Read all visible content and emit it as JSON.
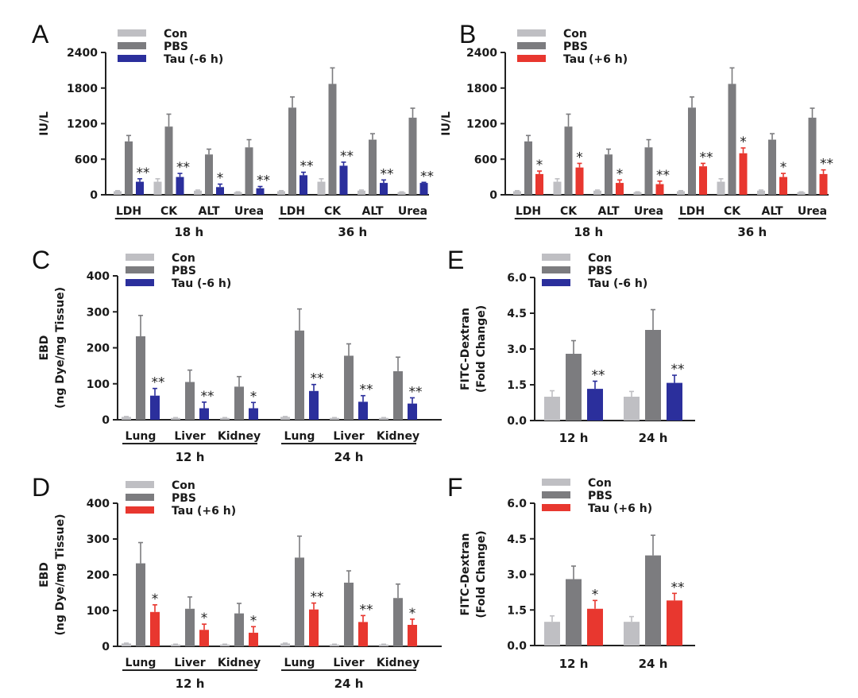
{
  "colors": {
    "con": "#bfbfc3",
    "pbs": "#7c7c7f",
    "tau_pre": "#2b2f9c",
    "tau_post": "#e8372f"
  },
  "chart_data": [
    {
      "panel": "A",
      "type": "bar",
      "title": "",
      "xlabel": "",
      "ylabel": "IU/L",
      "ylim": [
        0,
        2400
      ],
      "yticks": [
        "0",
        "600",
        "1200",
        "1800",
        "2400"
      ],
      "ytick_values": [
        0,
        600,
        1200,
        1800,
        2400
      ],
      "legend": [
        "Con",
        "PBS",
        "Tau (-6 h)"
      ],
      "legend_position": "top-left",
      "groups": [
        {
          "label": "18 h",
          "categories": [
            "LDH",
            "CK",
            "ALT",
            "Urea"
          ]
        },
        {
          "label": "36 h",
          "categories": [
            "LDH",
            "CK",
            "ALT",
            "Urea"
          ]
        }
      ],
      "treatment_color": "tau_pre",
      "series": [
        {
          "name": "Con",
          "values": [
            60,
            220,
            70,
            45,
            60,
            220,
            70,
            45
          ],
          "errors": [
            70,
            270,
            80,
            50,
            70,
            270,
            80,
            50
          ]
        },
        {
          "name": "PBS",
          "values": [
            900,
            1150,
            680,
            800,
            1470,
            1870,
            930,
            1300
          ],
          "errors": [
            1000,
            1360,
            770,
            930,
            1650,
            2140,
            1030,
            1460
          ]
        },
        {
          "name": "Tau (-6 h)",
          "values": [
            220,
            300,
            130,
            110,
            330,
            490,
            200,
            200
          ],
          "errors": [
            270,
            360,
            180,
            140,
            380,
            550,
            250,
            210
          ]
        }
      ],
      "significance": [
        "**",
        "**",
        "*",
        "**",
        "**",
        "**",
        "**",
        "**"
      ]
    },
    {
      "panel": "B",
      "type": "bar",
      "title": "",
      "xlabel": "",
      "ylabel": "IU/L",
      "ylim": [
        0,
        2400
      ],
      "yticks": [
        "0",
        "600",
        "1200",
        "1800",
        "2400"
      ],
      "ytick_values": [
        0,
        600,
        1200,
        1800,
        2400
      ],
      "legend": [
        "Con",
        "PBS",
        "Tau (+6 h)"
      ],
      "legend_position": "top-left",
      "groups": [
        {
          "label": "18 h",
          "categories": [
            "LDH",
            "CK",
            "ALT",
            "Urea"
          ]
        },
        {
          "label": "36 h",
          "categories": [
            "LDH",
            "CK",
            "ALT",
            "Urea"
          ]
        }
      ],
      "treatment_color": "tau_post",
      "series": [
        {
          "name": "Con",
          "values": [
            60,
            220,
            70,
            45,
            60,
            220,
            70,
            45
          ],
          "errors": [
            70,
            270,
            80,
            50,
            70,
            270,
            80,
            50
          ]
        },
        {
          "name": "PBS",
          "values": [
            900,
            1150,
            680,
            800,
            1470,
            1870,
            930,
            1300
          ],
          "errors": [
            1000,
            1360,
            770,
            930,
            1650,
            2140,
            1030,
            1460
          ]
        },
        {
          "name": "Tau (+6 h)",
          "values": [
            350,
            460,
            200,
            180,
            480,
            700,
            300,
            350
          ],
          "errors": [
            400,
            530,
            250,
            230,
            530,
            790,
            360,
            420
          ]
        }
      ],
      "significance": [
        "*",
        "*",
        "*",
        "**",
        "**",
        "*",
        "*",
        "**"
      ]
    },
    {
      "panel": "C",
      "type": "bar",
      "title": "",
      "xlabel": "",
      "ylabel": "EBD",
      "ylabel2": "(ng Dye/mg Tissue)",
      "ylim": [
        0,
        400
      ],
      "yticks": [
        "0",
        "100",
        "200",
        "300",
        "400"
      ],
      "ytick_values": [
        0,
        100,
        200,
        300,
        400
      ],
      "legend": [
        "Con",
        "PBS",
        "Tau (-6 h)"
      ],
      "legend_position": "top-left",
      "groups": [
        {
          "label": "12 h",
          "categories": [
            "Lung",
            "Liver",
            "Kidney"
          ]
        },
        {
          "label": "24 h",
          "categories": [
            "Lung",
            "Liver",
            "Kidney"
          ]
        }
      ],
      "treatment_color": "tau_pre",
      "series": [
        {
          "name": "Con",
          "values": [
            8,
            5,
            5,
            8,
            5,
            5
          ],
          "errors": [
            9,
            6,
            6,
            9,
            6,
            6
          ]
        },
        {
          "name": "PBS",
          "values": [
            232,
            105,
            92,
            248,
            178,
            135
          ],
          "errors": [
            290,
            138,
            120,
            308,
            211,
            174
          ]
        },
        {
          "name": "Tau (-6 h)",
          "values": [
            67,
            32,
            32,
            80,
            50,
            45
          ],
          "errors": [
            87,
            49,
            48,
            98,
            67,
            61
          ]
        }
      ],
      "significance": [
        "**",
        "**",
        "*",
        "**",
        "**",
        "**"
      ]
    },
    {
      "panel": "D",
      "type": "bar",
      "title": "",
      "xlabel": "",
      "ylabel": "EBD",
      "ylabel2": "(ng Dye/mg Tissue)",
      "ylim": [
        0,
        400
      ],
      "yticks": [
        "0",
        "100",
        "200",
        "300",
        "400"
      ],
      "ytick_values": [
        0,
        100,
        200,
        300,
        400
      ],
      "legend": [
        "Con",
        "PBS",
        "Tau (+6 h)"
      ],
      "legend_position": "top-left",
      "groups": [
        {
          "label": "12 h",
          "categories": [
            "Lung",
            "Liver",
            "Kidney"
          ]
        },
        {
          "label": "24 h",
          "categories": [
            "Lung",
            "Liver",
            "Kidney"
          ]
        }
      ],
      "treatment_color": "tau_post",
      "series": [
        {
          "name": "Con",
          "values": [
            8,
            5,
            5,
            8,
            5,
            5
          ],
          "errors": [
            9,
            6,
            6,
            9,
            6,
            6
          ]
        },
        {
          "name": "PBS",
          "values": [
            232,
            105,
            92,
            248,
            178,
            135
          ],
          "errors": [
            290,
            138,
            120,
            308,
            211,
            174
          ]
        },
        {
          "name": "Tau (+6 h)",
          "values": [
            96,
            46,
            38,
            103,
            68,
            60
          ],
          "errors": [
            116,
            62,
            55,
            121,
            86,
            76
          ]
        }
      ],
      "significance": [
        "*",
        "*",
        "*",
        "**",
        "**",
        "*"
      ]
    },
    {
      "panel": "E",
      "type": "bar",
      "title": "",
      "xlabel": "",
      "ylabel": "FITC-Dextran",
      "ylabel2": "(Fold Change)",
      "ylim": [
        0,
        6
      ],
      "yticks": [
        "0.0",
        "1.5",
        "3.0",
        "4.5",
        "6.0"
      ],
      "ytick_values": [
        0,
        1.5,
        3.0,
        4.5,
        6.0
      ],
      "legend": [
        "Con",
        "PBS",
        "Tau (-6 h)"
      ],
      "legend_position": "top-left",
      "categories": [
        "12 h",
        "24 h"
      ],
      "treatment_color": "tau_pre",
      "series": [
        {
          "name": "Con",
          "values": [
            1.0,
            1.0
          ],
          "errors": [
            1.25,
            1.22
          ]
        },
        {
          "name": "PBS",
          "values": [
            2.8,
            3.8
          ],
          "errors": [
            3.35,
            4.65
          ]
        },
        {
          "name": "Tau (-6 h)",
          "values": [
            1.33,
            1.58
          ],
          "errors": [
            1.65,
            1.9
          ]
        }
      ],
      "significance": [
        "**",
        "**"
      ]
    },
    {
      "panel": "F",
      "type": "bar",
      "title": "",
      "xlabel": "",
      "ylabel": "FITC-Dextran",
      "ylabel2": "(Fold Change)",
      "ylim": [
        0,
        6
      ],
      "yticks": [
        "0.0",
        "1.5",
        "3.0",
        "4.5",
        "6.0"
      ],
      "ytick_values": [
        0,
        1.5,
        3.0,
        4.5,
        6.0
      ],
      "legend": [
        "Con",
        "PBS",
        "Tau (+6 h)"
      ],
      "legend_position": "top-left",
      "categories": [
        "12 h",
        "24 h"
      ],
      "treatment_color": "tau_post",
      "series": [
        {
          "name": "Con",
          "values": [
            1.0,
            1.0
          ],
          "errors": [
            1.25,
            1.22
          ]
        },
        {
          "name": "PBS",
          "values": [
            2.8,
            3.8
          ],
          "errors": [
            3.35,
            4.65
          ]
        },
        {
          "name": "Tau (+6 h)",
          "values": [
            1.55,
            1.9
          ],
          "errors": [
            1.9,
            2.2
          ]
        }
      ],
      "significance": [
        "*",
        "**"
      ]
    }
  ]
}
